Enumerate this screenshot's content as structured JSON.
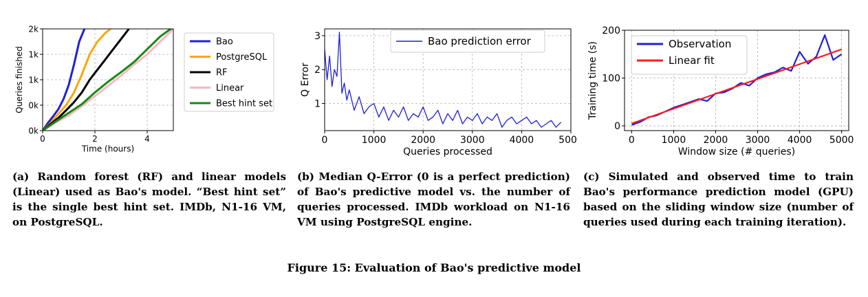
{
  "chart_data": [
    {
      "type": "line",
      "xlabel": "Time (hours)",
      "ylabel": "Queries finished",
      "xlim": [
        0,
        5
      ],
      "ylim": [
        0,
        2000
      ],
      "xticks": [
        {
          "v": 0,
          "label": "0"
        },
        {
          "v": 2,
          "label": "2"
        },
        {
          "v": 4,
          "label": "4"
        }
      ],
      "yticks": [
        {
          "v": 0,
          "label": "0k"
        },
        {
          "v": 500,
          "label": "0k"
        },
        {
          "v": 1000,
          "label": "1k"
        },
        {
          "v": 1500,
          "label": "1k"
        },
        {
          "v": 2000,
          "label": "2k"
        }
      ],
      "grid": true,
      "legend_position": "outside-right",
      "series": [
        {
          "name": "Bao",
          "color": "#1f1fd6",
          "x": [
            0,
            0.2,
            0.4,
            0.6,
            0.8,
            1.0,
            1.2,
            1.4,
            1.6
          ],
          "y": [
            0,
            150,
            280,
            420,
            620,
            900,
            1300,
            1750,
            2000
          ]
        },
        {
          "name": "PostgreSQL",
          "color": "#ffa500",
          "x": [
            0,
            0.3,
            0.6,
            0.9,
            1.2,
            1.5,
            1.8,
            2.1,
            2.4,
            2.6
          ],
          "y": [
            0,
            150,
            330,
            500,
            750,
            1100,
            1500,
            1750,
            1920,
            2000
          ]
        },
        {
          "name": "RF",
          "color": "#000000",
          "x": [
            0,
            0.3,
            0.6,
            0.9,
            1.2,
            1.5,
            1.8,
            2.1,
            2.4,
            2.7,
            3.0,
            3.3
          ],
          "y": [
            0,
            130,
            250,
            400,
            560,
            750,
            1000,
            1200,
            1400,
            1600,
            1800,
            2000
          ]
        },
        {
          "name": "Linear",
          "color": "#f6b8c2",
          "x": [
            0,
            0.5,
            1.0,
            1.5,
            2.0,
            2.5,
            3.0,
            3.5,
            4.0,
            4.5,
            5.0
          ],
          "y": [
            0,
            160,
            300,
            480,
            680,
            880,
            1080,
            1300,
            1500,
            1750,
            2000
          ]
        },
        {
          "name": "Best hint set",
          "color": "#138a13",
          "x": [
            0,
            0.5,
            1.0,
            1.5,
            2.0,
            2.5,
            3.0,
            3.5,
            4.0,
            4.5,
            4.9
          ],
          "y": [
            0,
            180,
            350,
            520,
            750,
            960,
            1150,
            1350,
            1600,
            1850,
            2000
          ]
        }
      ]
    },
    {
      "type": "line",
      "xlabel": "Queries processed",
      "ylabel": "Q Error",
      "xlim": [
        0,
        5000
      ],
      "ylim": [
        0.2,
        3.2
      ],
      "xticks": [
        {
          "v": 0,
          "label": "0"
        },
        {
          "v": 1000,
          "label": "1000"
        },
        {
          "v": 2000,
          "label": "2000"
        },
        {
          "v": 3000,
          "label": "3000"
        },
        {
          "v": 4000,
          "label": "4000"
        },
        {
          "v": 5000,
          "label": "5000"
        }
      ],
      "yticks": [
        {
          "v": 1,
          "label": "1"
        },
        {
          "v": 2,
          "label": "2"
        },
        {
          "v": 3,
          "label": "3"
        }
      ],
      "grid": true,
      "legend_position": "top-right",
      "series": [
        {
          "name": "Bao prediction error",
          "color": "#1f1fd6",
          "x": [
            0,
            50,
            100,
            150,
            200,
            250,
            300,
            350,
            400,
            450,
            500,
            600,
            700,
            800,
            900,
            1000,
            1100,
            1200,
            1300,
            1400,
            1500,
            1600,
            1700,
            1800,
            1900,
            2000,
            2100,
            2200,
            2300,
            2400,
            2500,
            2600,
            2700,
            2800,
            2900,
            3000,
            3100,
            3200,
            3300,
            3400,
            3500,
            3600,
            3700,
            3800,
            3900,
            4000,
            4100,
            4200,
            4300,
            4400,
            4500,
            4600,
            4700,
            4800
          ],
          "y": [
            2.6,
            1.7,
            2.4,
            1.5,
            2.0,
            1.8,
            3.1,
            1.3,
            1.6,
            1.1,
            1.4,
            0.8,
            1.2,
            0.7,
            0.9,
            1.0,
            0.6,
            0.9,
            0.5,
            0.8,
            0.6,
            0.9,
            0.5,
            0.7,
            0.6,
            0.9,
            0.5,
            0.6,
            0.8,
            0.4,
            0.7,
            0.5,
            0.8,
            0.4,
            0.6,
            0.5,
            0.7,
            0.4,
            0.6,
            0.5,
            0.7,
            0.3,
            0.5,
            0.6,
            0.4,
            0.5,
            0.6,
            0.4,
            0.5,
            0.3,
            0.4,
            0.5,
            0.3,
            0.45
          ]
        }
      ]
    },
    {
      "type": "line",
      "xlabel": "Window size (# queries)",
      "ylabel": "Training time (s)",
      "xlim": [
        -170,
        5170
      ],
      "ylim": [
        -10,
        200
      ],
      "xticks": [
        {
          "v": 0,
          "label": "0"
        },
        {
          "v": 1000,
          "label": "1000"
        },
        {
          "v": 2000,
          "label": "2000"
        },
        {
          "v": 3000,
          "label": "3000"
        },
        {
          "v": 4000,
          "label": "4000"
        },
        {
          "v": 5000,
          "label": "5000"
        }
      ],
      "yticks": [
        {
          "v": 0,
          "label": "0"
        },
        {
          "v": 100,
          "label": "100"
        },
        {
          "v": 200,
          "label": "200"
        }
      ],
      "grid": true,
      "legend_position": "top-left",
      "series": [
        {
          "name": "Observation",
          "color": "#1f1fd6",
          "x": [
            0,
            200,
            400,
            600,
            800,
            1000,
            1200,
            1400,
            1600,
            1800,
            2000,
            2200,
            2400,
            2600,
            2800,
            3000,
            3200,
            3400,
            3600,
            3800,
            4000,
            4200,
            4400,
            4600,
            4800,
            5000
          ],
          "y": [
            2,
            8,
            18,
            22,
            30,
            38,
            44,
            50,
            56,
            52,
            68,
            70,
            78,
            90,
            84,
            100,
            108,
            112,
            122,
            115,
            155,
            130,
            145,
            190,
            138,
            150
          ]
        },
        {
          "name": "Linear fit",
          "color": "#ff1a1a",
          "x": [
            0,
            5000
          ],
          "y": [
            5,
            160
          ]
        }
      ]
    }
  ],
  "captions": {
    "a": "(a) Random forest (RF) and linear models (Linear) used as Bao's model. “Best hint set” is the single best hint set. IMDb, N1-16 VM, on PostgreSQL.",
    "b": "(b) Median Q-Error (0 is a perfect prediction) of Bao's predictive model vs. the number of queries processed. IMDb workload on N1-16 VM using PostgreSQL engine.",
    "c": "(c) Simulated and observed time to train Bao's performance prediction model (GPU) based on the sliding window size (number of queries used during each training iteration)."
  },
  "figure_caption": "Figure 15: Evaluation of Bao's predictive model"
}
